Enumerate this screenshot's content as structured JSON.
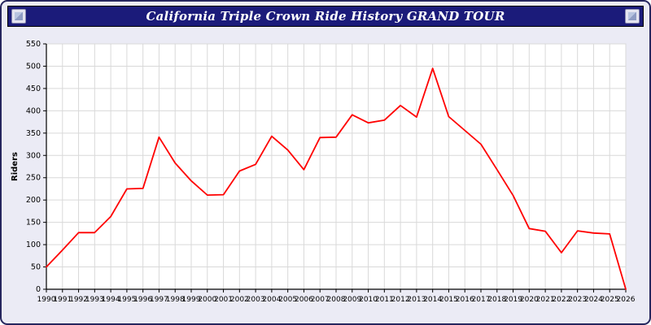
{
  "window": {
    "title": "California Triple Crown Ride History GRAND TOUR"
  },
  "icons": {
    "left": "decorative-badge-icon",
    "right": "decorative-badge-icon"
  },
  "colors": {
    "frame_bg": "#ebebf5",
    "titlebar_bg": "#1b1b7a",
    "title_text": "#ffffff",
    "plot_bg": "#ffffff",
    "grid": "#d9d9d9",
    "axis": "#000000",
    "line": "#ff0000"
  },
  "chart_data": {
    "type": "line",
    "title": "California Triple Crown Ride History GRAND TOUR",
    "xlabel": "",
    "ylabel": "Riders",
    "ylim": [
      0,
      550
    ],
    "ytick_step": 50,
    "grid": true,
    "legend": "none",
    "x": [
      1990,
      1991,
      1992,
      1993,
      1994,
      1995,
      1996,
      1997,
      1998,
      1999,
      2000,
      2001,
      2002,
      2003,
      2004,
      2005,
      2006,
      2007,
      2008,
      2009,
      2010,
      2011,
      2012,
      2013,
      2014,
      2015,
      2016,
      2017,
      2018,
      2019,
      2020,
      2021,
      2022,
      2023,
      2024,
      2025,
      2026
    ],
    "series": [
      {
        "name": "Riders",
        "color": "#ff0000",
        "values": [
          50,
          88,
          127,
          127,
          163,
          225,
          226,
          341,
          283,
          243,
          211,
          212,
          265,
          280,
          343,
          312,
          268,
          340,
          341,
          391,
          373,
          379,
          412,
          386,
          495,
          387,
          356,
          325,
          268,
          210,
          136,
          130,
          82,
          131,
          126,
          124,
          0
        ]
      }
    ]
  }
}
